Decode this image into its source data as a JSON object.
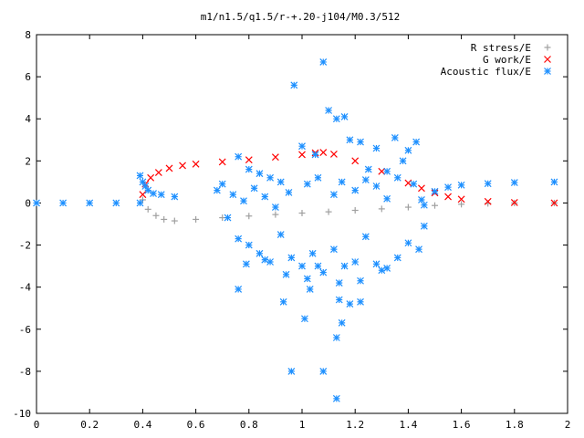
{
  "chart_data": {
    "type": "scatter",
    "title": "m1/n1.5/q1.5/r-+.20-j104/M0.3/512",
    "xlim": [
      0,
      2
    ],
    "ylim": [
      -10,
      8
    ],
    "x_ticks": [
      "0",
      "0.2",
      "0.4",
      "0.6",
      "0.8",
      "1",
      "1.2",
      "1.4",
      "1.6",
      "1.8",
      "2"
    ],
    "y_ticks": [
      "8",
      "6",
      "4",
      "2",
      "0",
      "-2",
      "-4",
      "-6",
      "-8",
      "-10"
    ],
    "grid": false,
    "legend_position": "top-right",
    "series": [
      {
        "name": "R stress/E",
        "marker": "+",
        "color": "#a0a0a0",
        "points": [
          [
            0.4,
            0.15
          ],
          [
            0.42,
            -0.3
          ],
          [
            0.45,
            -0.6
          ],
          [
            0.48,
            -0.78
          ],
          [
            0.52,
            -0.85
          ],
          [
            0.6,
            -0.78
          ],
          [
            0.7,
            -0.7
          ],
          [
            0.8,
            -0.62
          ],
          [
            0.9,
            -0.55
          ],
          [
            1.0,
            -0.48
          ],
          [
            1.1,
            -0.42
          ],
          [
            1.2,
            -0.35
          ],
          [
            1.3,
            -0.28
          ],
          [
            1.4,
            -0.2
          ],
          [
            1.5,
            -0.12
          ],
          [
            1.6,
            -0.06
          ],
          [
            1.7,
            -0.02
          ],
          [
            1.8,
            0.0
          ],
          [
            1.95,
            0.0
          ]
        ]
      },
      {
        "name": "G work/E",
        "marker": "x",
        "color": "#ff0000",
        "points": [
          [
            0.4,
            0.4
          ],
          [
            0.41,
            0.9
          ],
          [
            0.43,
            1.2
          ],
          [
            0.46,
            1.45
          ],
          [
            0.5,
            1.65
          ],
          [
            0.55,
            1.78
          ],
          [
            0.6,
            1.85
          ],
          [
            0.7,
            1.95
          ],
          [
            0.8,
            2.05
          ],
          [
            0.9,
            2.18
          ],
          [
            1.0,
            2.3
          ],
          [
            1.05,
            2.38
          ],
          [
            1.08,
            2.4
          ],
          [
            1.12,
            2.32
          ],
          [
            1.2,
            2.0
          ],
          [
            1.3,
            1.5
          ],
          [
            1.4,
            0.95
          ],
          [
            1.45,
            0.7
          ],
          [
            1.5,
            0.48
          ],
          [
            1.55,
            0.3
          ],
          [
            1.6,
            0.18
          ],
          [
            1.7,
            0.07
          ],
          [
            1.8,
            0.02
          ],
          [
            1.95,
            0.0
          ]
        ]
      },
      {
        "name": "Acoustic flux/E",
        "marker": "*",
        "color": "#1e90ff",
        "points": [
          [
            0.0,
            0.0
          ],
          [
            0.1,
            0.0
          ],
          [
            0.2,
            0.0
          ],
          [
            0.3,
            0.0
          ],
          [
            0.39,
            0.0
          ],
          [
            0.39,
            1.3
          ],
          [
            0.4,
            1.0
          ],
          [
            0.41,
            0.8
          ],
          [
            0.42,
            0.6
          ],
          [
            0.44,
            0.45
          ],
          [
            0.47,
            0.4
          ],
          [
            0.52,
            0.3
          ],
          [
            1.45,
            0.15
          ],
          [
            1.5,
            0.55
          ],
          [
            1.55,
            0.75
          ],
          [
            1.6,
            0.85
          ],
          [
            1.7,
            0.92
          ],
          [
            1.8,
            0.97
          ],
          [
            1.95,
            1.0
          ],
          [
            0.97,
            5.6
          ],
          [
            1.08,
            6.7
          ],
          [
            1.1,
            4.4
          ],
          [
            1.13,
            4.0
          ],
          [
            1.16,
            4.1
          ],
          [
            1.18,
            3.0
          ],
          [
            1.0,
            2.7
          ],
          [
            1.05,
            2.3
          ],
          [
            1.22,
            2.9
          ],
          [
            1.28,
            2.6
          ],
          [
            1.35,
            3.1
          ],
          [
            1.4,
            2.5
          ],
          [
            1.43,
            2.9
          ],
          [
            1.38,
            2.0
          ],
          [
            1.32,
            1.5
          ],
          [
            1.25,
            1.6
          ],
          [
            0.76,
            2.2
          ],
          [
            0.8,
            1.6
          ],
          [
            0.84,
            1.4
          ],
          [
            0.88,
            1.2
          ],
          [
            0.92,
            1.0
          ],
          [
            0.7,
            0.9
          ],
          [
            0.68,
            0.6
          ],
          [
            0.74,
            0.4
          ],
          [
            0.78,
            0.1
          ],
          [
            0.82,
            0.7
          ],
          [
            0.86,
            0.3
          ],
          [
            0.9,
            -0.2
          ],
          [
            0.95,
            0.5
          ],
          [
            1.02,
            0.9
          ],
          [
            1.06,
            1.2
          ],
          [
            1.12,
            0.4
          ],
          [
            1.15,
            1.0
          ],
          [
            1.2,
            0.6
          ],
          [
            1.24,
            1.1
          ],
          [
            1.28,
            0.8
          ],
          [
            1.32,
            0.2
          ],
          [
            1.36,
            1.2
          ],
          [
            1.42,
            0.9
          ],
          [
            1.46,
            -0.1
          ],
          [
            0.72,
            -0.7
          ],
          [
            0.76,
            -1.7
          ],
          [
            0.8,
            -2.0
          ],
          [
            0.84,
            -2.4
          ],
          [
            0.88,
            -2.8
          ],
          [
            0.92,
            -1.5
          ],
          [
            0.96,
            -2.6
          ],
          [
            1.0,
            -3.0
          ],
          [
            1.04,
            -2.4
          ],
          [
            1.08,
            -3.3
          ],
          [
            1.12,
            -2.2
          ],
          [
            1.16,
            -3.0
          ],
          [
            1.2,
            -2.8
          ],
          [
            1.24,
            -1.6
          ],
          [
            1.28,
            -2.9
          ],
          [
            1.32,
            -3.1
          ],
          [
            1.36,
            -2.6
          ],
          [
            1.4,
            -1.9
          ],
          [
            1.44,
            -2.2
          ],
          [
            1.46,
            -1.1
          ],
          [
            0.79,
            -2.9
          ],
          [
            0.86,
            -2.7
          ],
          [
            0.94,
            -3.4
          ],
          [
            1.02,
            -3.6
          ],
          [
            1.06,
            -3.0
          ],
          [
            1.14,
            -3.8
          ],
          [
            1.22,
            -3.7
          ],
          [
            1.3,
            -3.2
          ],
          [
            0.76,
            -4.1
          ],
          [
            0.93,
            -4.7
          ],
          [
            1.03,
            -4.1
          ],
          [
            1.14,
            -4.6
          ],
          [
            1.18,
            -4.8
          ],
          [
            1.22,
            -4.7
          ],
          [
            1.01,
            -5.5
          ],
          [
            1.15,
            -5.7
          ],
          [
            1.13,
            -6.4
          ],
          [
            0.96,
            -8.0
          ],
          [
            1.08,
            -8.0
          ],
          [
            1.13,
            -9.3
          ]
        ]
      }
    ]
  }
}
